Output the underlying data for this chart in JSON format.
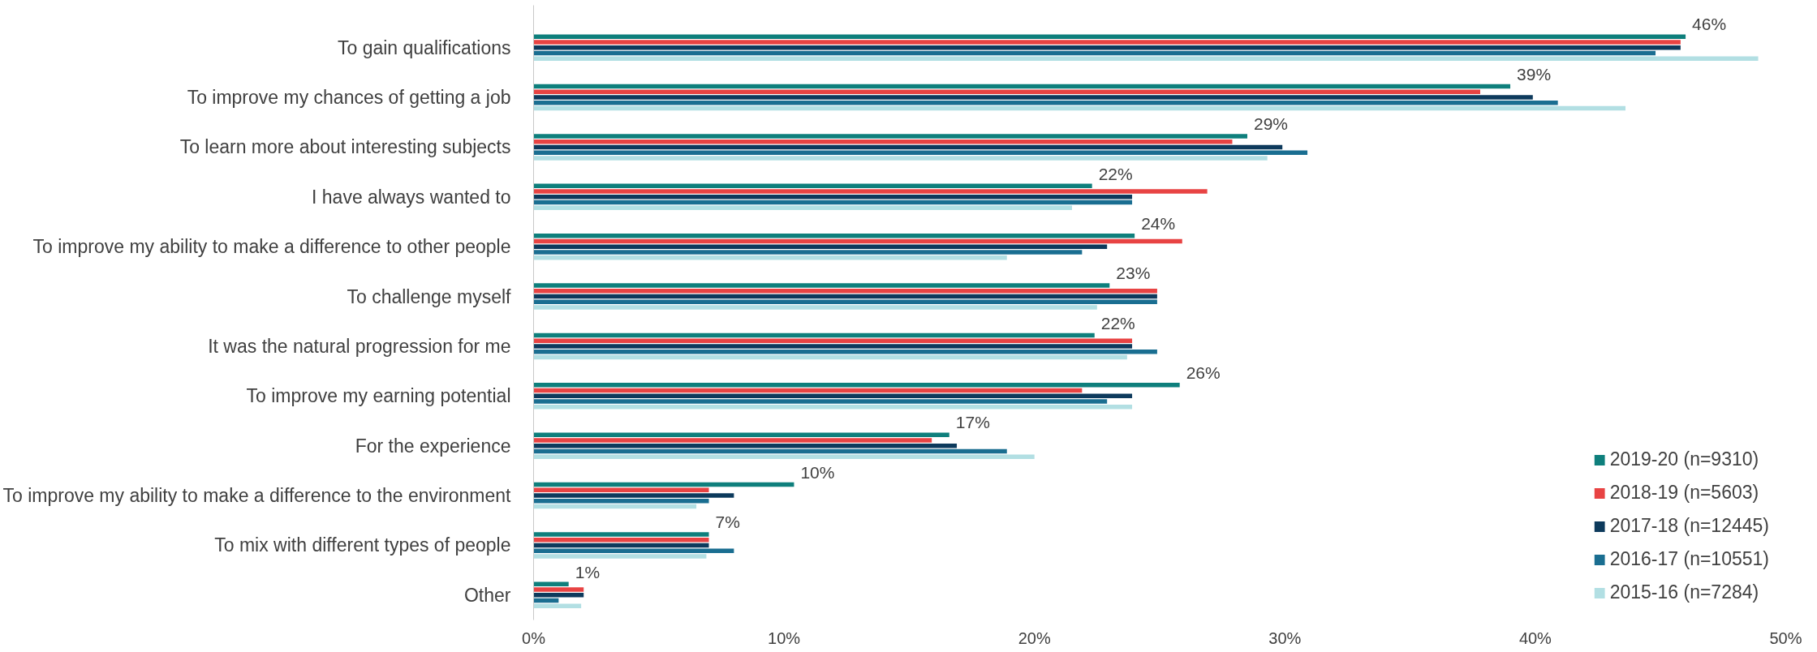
{
  "chart_data": {
    "type": "bar",
    "orientation": "horizontal",
    "categories": [
      "To gain qualifications",
      "To improve my chances of getting a job",
      "To learn more about interesting subjects",
      "I have always wanted to",
      "To improve my ability to make a difference to other people",
      "To challenge myself",
      "It was the natural progression for me",
      "To improve my earning potential",
      "For the experience",
      "To improve my ability to make a difference to the environment",
      "To mix with different types of people",
      "Other"
    ],
    "series": [
      {
        "name": "2019-20 (n=9310)",
        "color": "#0e7f7c",
        "values": [
          46,
          39,
          28.5,
          22.3,
          24,
          23,
          22.4,
          25.8,
          16.6,
          10.4,
          7,
          1.4
        ],
        "value_labels": [
          "46%",
          "39%",
          "29%",
          "22%",
          "24%",
          "23%",
          "22%",
          "26%",
          "17%",
          "10%",
          "7%",
          "1%"
        ]
      },
      {
        "name": "2018-19 (n=5603)",
        "color": "#e84343",
        "values": [
          45.8,
          37.8,
          27.9,
          26.9,
          25.9,
          24.9,
          23.9,
          21.9,
          15.9,
          7,
          7,
          2
        ]
      },
      {
        "name": "2017-18 (n=12445)",
        "color": "#0d3a5c",
        "values": [
          45.8,
          39.9,
          29.9,
          23.9,
          22.9,
          24.9,
          23.9,
          23.9,
          16.9,
          8,
          7,
          2
        ]
      },
      {
        "name": "2016-17 (n=10551)",
        "color": "#1a6e91",
        "values": [
          44.8,
          40.9,
          30.9,
          23.9,
          21.9,
          24.9,
          24.9,
          22.9,
          18.9,
          7,
          8,
          1
        ]
      },
      {
        "name": "2015-16 (n=7284)",
        "color": "#b2dfe3",
        "values": [
          48.9,
          43.6,
          29.3,
          21.5,
          18.9,
          22.5,
          23.7,
          23.9,
          20,
          6.5,
          6.9,
          1.9
        ]
      }
    ],
    "xlim": [
      0,
      50
    ],
    "xticks": [
      {
        "value": 0,
        "label": "0%"
      },
      {
        "value": 10,
        "label": "10%"
      },
      {
        "value": 20,
        "label": "20%"
      },
      {
        "value": 30,
        "label": "30%"
      },
      {
        "value": 40,
        "label": "40%"
      },
      {
        "value": 50,
        "label": "50%"
      }
    ],
    "grid": false,
    "legend": "bottom right"
  }
}
